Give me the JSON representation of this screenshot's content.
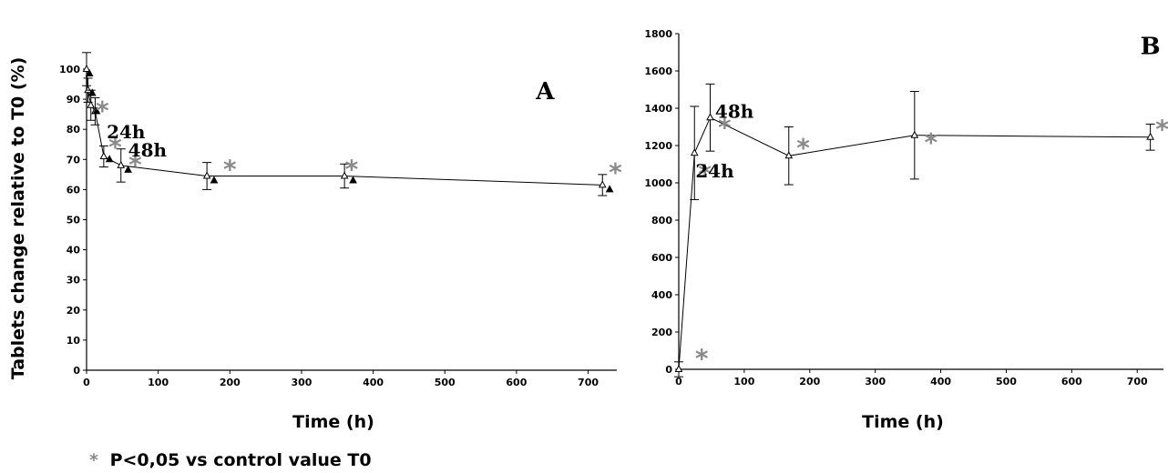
{
  "ylabel_shared": "Tablets change relative to T0 (%)",
  "footnote": {
    "star": "*",
    "text": "P<0,05 vs control value T0"
  },
  "colors": {
    "line": "#000000",
    "marker": "#000000",
    "star": "#8a8a8a"
  },
  "chart_data": [
    {
      "panel": "A",
      "type": "line",
      "xlabel": "Time (h)",
      "xlim": [
        0,
        740
      ],
      "xticks": [
        0,
        100,
        200,
        300,
        400,
        500,
        600,
        700
      ],
      "ylim": [
        0,
        100
      ],
      "yticks": [
        0,
        10,
        20,
        30,
        40,
        50,
        60,
        70,
        80,
        90,
        100
      ],
      "grid": false,
      "series": [
        {
          "points": [
            {
              "x": 0,
              "y": 100,
              "err": 5.5
            },
            {
              "x": 2,
              "y": 93,
              "err": 4
            },
            {
              "x": 6,
              "y": 88,
              "err": 5
            },
            {
              "x": 12,
              "y": 86,
              "err": 4.5
            },
            {
              "x": 24,
              "y": 71,
              "err": 3.5
            },
            {
              "x": 48,
              "y": 68,
              "err": 5.5
            },
            {
              "x": 168,
              "y": 64.5,
              "err": 4.5
            },
            {
              "x": 360,
              "y": 64.5,
              "err": 4
            },
            {
              "x": 720,
              "y": 61.5,
              "err": 3.5
            }
          ],
          "markers2": [
            {
              "x": 4,
              "y": 98.5
            },
            {
              "x": 8,
              "y": 92
            },
            {
              "x": 14,
              "y": 86
            },
            {
              "x": 32,
              "y": 70
            },
            {
              "x": 58,
              "y": 66.5
            },
            {
              "x": 178,
              "y": 63
            },
            {
              "x": 372,
              "y": 63
            },
            {
              "x": 730,
              "y": 60
            }
          ]
        }
      ],
      "stars": [
        {
          "x": 22,
          "y": 87
        },
        {
          "x": 40,
          "y": 75
        },
        {
          "x": 68,
          "y": 69
        },
        {
          "x": 200,
          "y": 67.5
        },
        {
          "x": 370,
          "y": 67.5
        },
        {
          "x": 738,
          "y": 66.5
        }
      ],
      "annotations": [
        {
          "text": "24h",
          "x": 55,
          "y": 77
        },
        {
          "text": "48h",
          "x": 85,
          "y": 71
        },
        {
          "text": "A",
          "x": 640,
          "y": 90
        }
      ]
    },
    {
      "panel": "B",
      "type": "line",
      "xlabel": "Time (h)",
      "xlim": [
        0,
        740
      ],
      "xticks": [
        0,
        100,
        200,
        300,
        400,
        500,
        600,
        700
      ],
      "ylim": [
        0,
        1800
      ],
      "yticks": [
        0,
        200,
        400,
        600,
        800,
        1000,
        1200,
        1400,
        1600,
        1800
      ],
      "grid": false,
      "series": [
        {
          "points": [
            {
              "x": 0,
              "y": 0,
              "err": 40
            },
            {
              "x": 24,
              "y": 1160,
              "err": 250
            },
            {
              "x": 48,
              "y": 1350,
              "err": 180
            },
            {
              "x": 168,
              "y": 1145,
              "err": 155
            },
            {
              "x": 360,
              "y": 1255,
              "err": 235
            },
            {
              "x": 720,
              "y": 1245,
              "err": 70
            }
          ]
        }
      ],
      "stars": [
        {
          "x": 35,
          "y": 70
        },
        {
          "x": 40,
          "y": 1060
        },
        {
          "x": 70,
          "y": 1310
        },
        {
          "x": 190,
          "y": 1200
        },
        {
          "x": 385,
          "y": 1230
        },
        {
          "x": 738,
          "y": 1300
        }
      ],
      "annotations": [
        {
          "text": "24h",
          "x": 55,
          "y": 1030
        },
        {
          "text": "48h",
          "x": 85,
          "y": 1350
        },
        {
          "text": "B",
          "x": 720,
          "y": 1690
        }
      ]
    }
  ]
}
